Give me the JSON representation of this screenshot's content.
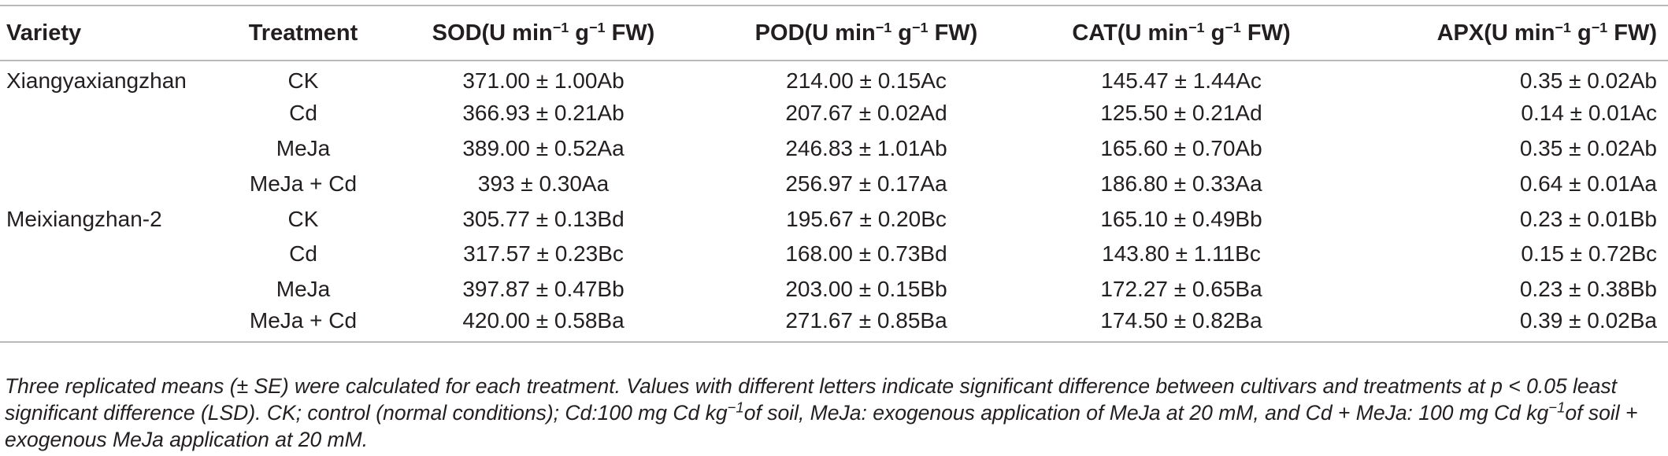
{
  "table": {
    "headers": {
      "variety": "Variety",
      "treatment": "Treatment",
      "sod": {
        "base": "SOD(U min",
        "sup1": "−1",
        "mid": " g",
        "sup2": "−1",
        "end": " FW)"
      },
      "pod": {
        "base": "POD(U min",
        "sup1": "−1",
        "mid": " g",
        "sup2": "−1",
        "end": " FW)"
      },
      "cat": {
        "base": "CAT(U min",
        "sup1": "−1",
        "mid": " g",
        "sup2": "−1",
        "end": " FW)"
      },
      "apx": {
        "base": "APX(U min",
        "sup1": "−1",
        "mid": " g",
        "sup2": "−1",
        "end": " FW)"
      }
    },
    "rows": [
      {
        "variety": "Xiangyaxiangzhan",
        "treatment": "CK",
        "sod": "371.00 ± 1.00Ab",
        "pod": "214.00 ± 0.15Ac",
        "cat": "145.47 ± 1.44Ac",
        "apx": "0.35 ± 0.02Ab"
      },
      {
        "variety": "",
        "treatment": "Cd",
        "sod": "366.93 ± 0.21Ab",
        "pod": "207.67 ± 0.02Ad",
        "cat": "125.50 ± 0.21Ad",
        "apx": "0.14 ± 0.01Ac"
      },
      {
        "variety": "",
        "treatment": "MeJa",
        "sod": "389.00 ± 0.52Aa",
        "pod": "246.83 ± 1.01Ab",
        "cat": "165.60 ± 0.70Ab",
        "apx": "0.35 ± 0.02Ab"
      },
      {
        "variety": "",
        "treatment": "MeJa + Cd",
        "sod": "393 ± 0.30Aa",
        "pod": "256.97 ± 0.17Aa",
        "cat": "186.80 ± 0.33Aa",
        "apx": "0.64 ± 0.01Aa"
      },
      {
        "variety": "Meixiangzhan-2",
        "treatment": "CK",
        "sod": "305.77 ± 0.13Bd",
        "pod": "195.67 ± 0.20Bc",
        "cat": "165.10 ± 0.49Bb",
        "apx": "0.23 ± 0.01Bb"
      },
      {
        "variety": "",
        "treatment": "Cd",
        "sod": "317.57 ± 0.23Bc",
        "pod": "168.00 ± 0.73Bd",
        "cat": "143.80 ± 1.11Bc",
        "apx": "0.15 ± 0.72Bc"
      },
      {
        "variety": "",
        "treatment": "MeJa",
        "sod": "397.87 ± 0.47Bb",
        "pod": "203.00 ± 0.15Bb",
        "cat": "172.27 ± 0.65Ba",
        "apx": "0.23 ± 0.38Bb"
      },
      {
        "variety": "",
        "treatment": "MeJa + Cd",
        "sod": "420.00 ± 0.58Ba",
        "pod": "271.67 ± 0.85Ba",
        "cat": "174.50 ± 0.82Ba",
        "apx": "0.39 ± 0.02Ba"
      }
    ]
  },
  "footnote": {
    "part1": "Three replicated means (± SE) were calculated for each treatment. Values with different letters indicate significant difference between cultivars and treatments at p < 0.05 least significant difference (LSD). CK; control (normal conditions); Cd:100 mg Cd kg",
    "sup1": "−1",
    "part2": "of soil, MeJa: exogenous application of MeJa at 20 mM, and Cd + MeJa: 100 mg Cd kg",
    "sup2": "−1",
    "part3": "of soil + exogenous MeJa application at 20 mM."
  },
  "colors": {
    "text": "#231f20",
    "rule": "#b9b9b9",
    "background": "#ffffff"
  }
}
